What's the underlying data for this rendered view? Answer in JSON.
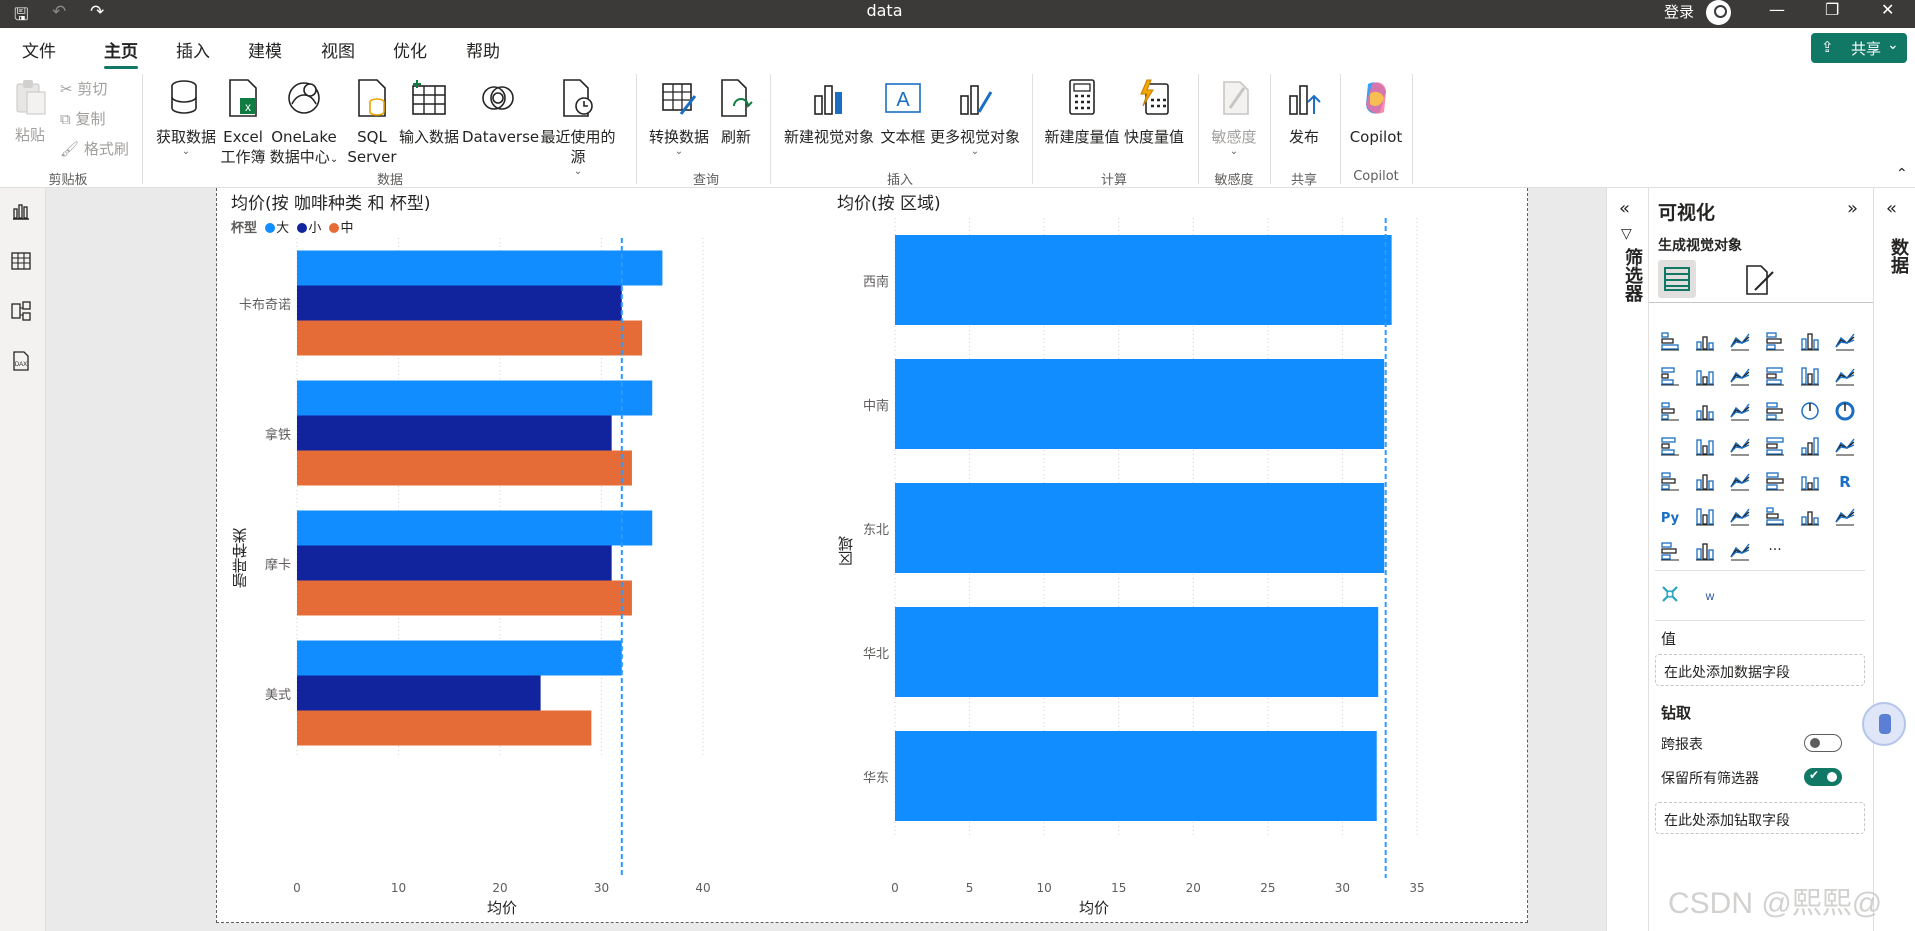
{
  "window": {
    "title": "data",
    "signin": "登录",
    "min": "—",
    "restore": "❐",
    "close": "✕"
  },
  "tabs": [
    "文件",
    "主页",
    "插入",
    "建模",
    "视图",
    "优化",
    "帮助"
  ],
  "share_label": "共享",
  "ribbon": {
    "clipboard": {
      "paste": "粘贴",
      "cut": "剪切",
      "copy": "复制",
      "format": "格式刷",
      "group": "剪贴板"
    },
    "data": {
      "get_data": "获取数据",
      "excel_1": "Excel",
      "excel_2": "工作簿",
      "onelake_1": "OneLake",
      "onelake_2": "数据中心",
      "sql_1": "SQL",
      "sql_2": "Server",
      "enter_data": "输入数据",
      "dataverse": "Dataverse",
      "recent": "最近使用的源",
      "group": "数据"
    },
    "query": {
      "transform": "转换数据",
      "refresh": "刷新",
      "group": "查询"
    },
    "insert": {
      "new_visual": "新建视觉对象",
      "textbox": "文本框",
      "more_visuals": "更多视觉对象",
      "group": "插入"
    },
    "calc": {
      "new_measure": "新建度量值",
      "quick_measure": "快度量值",
      "group": "计算"
    },
    "sensitivity": {
      "label": "敏感度",
      "group": "敏感度"
    },
    "share": {
      "publish": "发布",
      "group": "共享"
    },
    "copilot": {
      "label": "Copilot",
      "group": "Copilot"
    }
  },
  "chart_data": [
    {
      "type": "bar",
      "orientation": "horizontal",
      "title": "均价(按 咖啡种类 和 杯型)",
      "legend_title": "杯型",
      "legend_position": "top-left",
      "categories": [
        "卡布奇诺",
        "拿铁",
        "摩卡",
        "美式"
      ],
      "series": [
        {
          "name": "大",
          "color": "#118dff",
          "values": [
            36,
            35,
            35,
            32
          ]
        },
        {
          "name": "小",
          "color": "#12239e",
          "values": [
            32,
            31,
            31,
            24
          ]
        },
        {
          "name": "中",
          "color": "#e66c37",
          "values": [
            34,
            33,
            33,
            29
          ]
        }
      ],
      "xlabel": "均价",
      "ylabel": "咖啡种类",
      "xlim": [
        0,
        40
      ],
      "xticks": [
        "0",
        "10",
        "20",
        "30",
        "40"
      ],
      "reference_line": 32,
      "grid": true
    },
    {
      "type": "bar",
      "orientation": "horizontal",
      "title": "均价(按 区域)",
      "categories": [
        "西南",
        "中南",
        "东北",
        "华北",
        "华东"
      ],
      "series": [
        {
          "color": "#118dff",
          "values": [
            33.3,
            32.8,
            32.8,
            32.4,
            32.3
          ]
        }
      ],
      "xlabel": "均价",
      "ylabel": "区域",
      "xlim": [
        0,
        35
      ],
      "xticks": [
        "0",
        "5",
        "10",
        "15",
        "20",
        "25",
        "30",
        "35"
      ],
      "reference_line": 32.9,
      "grid": true
    }
  ],
  "filters_label": "筛选器",
  "viz_pane": {
    "title": "可视化",
    "subtitle": "生成视觉对象",
    "values_label": "值",
    "values_placeholder": "在此处添加数据字段",
    "drill_label": "钻取",
    "cross_report": "跨报表",
    "cross_report_on": false,
    "keep_filters": "保留所有筛选器",
    "keep_filters_on": true,
    "drill_placeholder": "在此处添加钻取字段"
  },
  "data_label": "数据",
  "watermark": "CSDN @熙熙@"
}
